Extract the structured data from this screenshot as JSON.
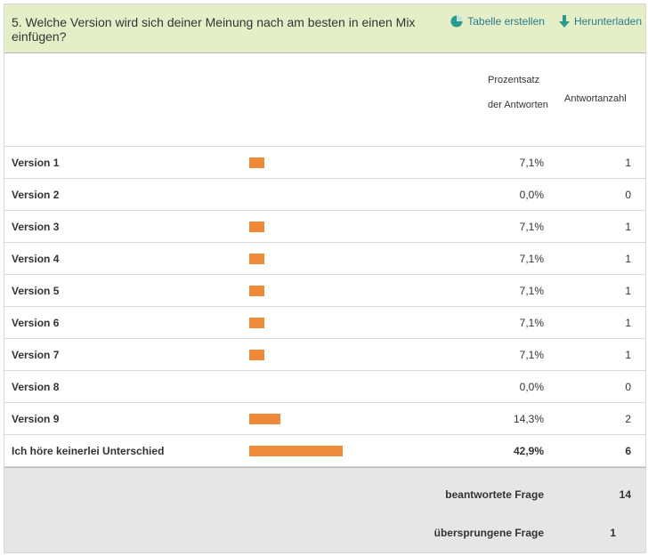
{
  "question": {
    "text": "5. Welche Version wird sich deiner Meinung nach am besten in einen Mix einfügen?"
  },
  "actions": {
    "create_table": "Tabelle erstellen",
    "download": "Herunterladen"
  },
  "columns": {
    "percent": "Prozentsatz der Antworten",
    "count": "Antwortanzahl"
  },
  "accent_color": "#ef8a3a",
  "chart_data": {
    "type": "bar",
    "categories": [
      "Version 1",
      "Version 2",
      "Version 3",
      "Version 4",
      "Version 5",
      "Version 6",
      "Version 7",
      "Version 8",
      "Version 9",
      "Ich höre keinerlei Unterschied"
    ],
    "values": [
      7.1,
      0.0,
      7.1,
      7.1,
      7.1,
      7.1,
      7.1,
      0.0,
      14.3,
      42.9
    ],
    "counts": [
      1,
      0,
      1,
      1,
      1,
      1,
      1,
      0,
      2,
      6
    ]
  },
  "rows": [
    {
      "label": "Version 1",
      "percent_text": "7,1%",
      "count_text": "1"
    },
    {
      "label": "Version 2",
      "percent_text": "0,0%",
      "count_text": "0"
    },
    {
      "label": "Version 3",
      "percent_text": "7,1%",
      "count_text": "1"
    },
    {
      "label": "Version 4",
      "percent_text": "7,1%",
      "count_text": "1"
    },
    {
      "label": "Version 5",
      "percent_text": "7,1%",
      "count_text": "1"
    },
    {
      "label": "Version 6",
      "percent_text": "7,1%",
      "count_text": "1"
    },
    {
      "label": "Version 7",
      "percent_text": "7,1%",
      "count_text": "1"
    },
    {
      "label": "Version 8",
      "percent_text": "0,0%",
      "count_text": "0"
    },
    {
      "label": "Version 9",
      "percent_text": "14,3%",
      "count_text": "2"
    },
    {
      "label": "Ich höre keinerlei Unterschied",
      "percent_text": "42,9%",
      "count_text": "6"
    }
  ],
  "summary": {
    "answered_label": "beantwortete Frage",
    "answered_value": "14",
    "skipped_label": "übersprungene Frage",
    "skipped_value": "1"
  }
}
